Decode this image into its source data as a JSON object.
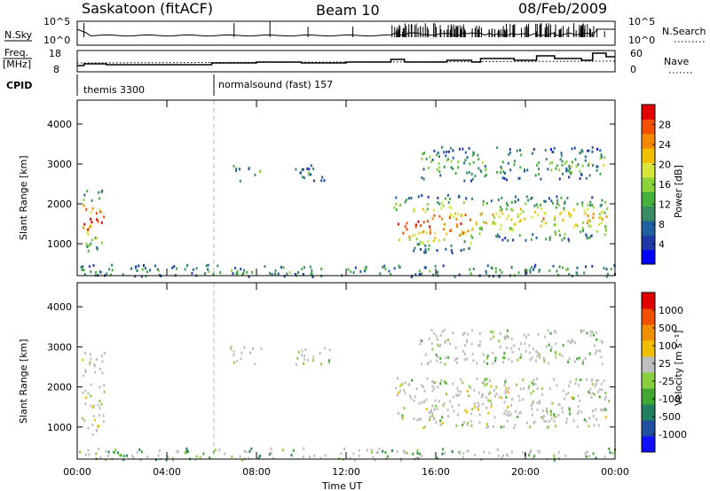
{
  "header": {
    "station": "Saskatoon (fitACF)",
    "beam": "Beam 10",
    "date": "08/Feb/2009"
  },
  "status_panel": {
    "nsky_label": "N.Sky",
    "nsearch_label": "N.Search",
    "freq_label_1": "Freq.",
    "freq_label_2": "[MHz]",
    "nave_label": "Nave",
    "cpid_label": "CPID",
    "noise_ticks": [
      "10^5",
      "10^0"
    ],
    "freq_ticks": [
      "18",
      "8"
    ],
    "nave_ticks": [
      "60",
      "0"
    ],
    "cpid_segments": [
      {
        "start_hour": 0.0,
        "name": "themis 3300"
      },
      {
        "start_hour": 6.0,
        "name": "normalsound (fast) 157"
      }
    ]
  },
  "chart_data": [
    {
      "type": "heatmap",
      "title": "",
      "parameter": "Power",
      "ylabel": "Slant Range [km]",
      "xlabel": "",
      "xlim_hours": [
        0,
        24
      ],
      "ylim_km": [
        200,
        4600
      ],
      "yticks": [
        "1000",
        "2000",
        "3000",
        "4000"
      ],
      "colorbar_label": "Power [dB]",
      "colorbar_ticks": [
        "28",
        "24",
        "20",
        "16",
        "12",
        "8",
        "4"
      ],
      "colorbar_colors": [
        "#0000ff",
        "#2038a8",
        "#2060a0",
        "#3a8a64",
        "#42b23c",
        "#8cd23a",
        "#d8e63c",
        "#f0c000",
        "#f48a00",
        "#f05000",
        "#e00000"
      ],
      "regions": [
        {
          "x": [
            0.2,
            1.2
          ],
          "y": [
            800,
            2400
          ],
          "level": 0.85
        },
        {
          "x": [
            6.7,
            8.2
          ],
          "y": [
            2600,
            3050
          ],
          "level": 0.2
        },
        {
          "x": [
            9.7,
            11.3
          ],
          "y": [
            2550,
            3000
          ],
          "level": 0.2
        },
        {
          "x": [
            14.1,
            17.6
          ],
          "y": [
            800,
            2250
          ],
          "level": 0.8
        },
        {
          "x": [
            17.5,
            23.7
          ],
          "y": [
            1100,
            2250
          ],
          "level": 0.55
        },
        {
          "x": [
            15.2,
            23.5
          ],
          "y": [
            2600,
            3450
          ],
          "level": 0.25
        },
        {
          "x": [
            0,
            24
          ],
          "y": [
            200,
            500
          ],
          "level": 0.2
        }
      ]
    },
    {
      "type": "heatmap",
      "title": "",
      "parameter": "Velocity",
      "ylabel": "Slant Range [km]",
      "xlabel": "Time UT",
      "xlim_hours": [
        0,
        24
      ],
      "ylim_km": [
        200,
        4600
      ],
      "yticks": [
        "1000",
        "2000",
        "3000",
        "4000"
      ],
      "xticks": [
        "00:00",
        "04:00",
        "08:00",
        "12:00",
        "16:00",
        "20:00",
        "00:00"
      ],
      "colorbar_label": "Velocity [m s⁻¹]",
      "colorbar_ticks": [
        "1000",
        "500",
        "100",
        "25",
        "-25",
        "-100",
        "-500",
        "-1000"
      ],
      "colorbar_colors": [
        "#1010ff",
        "#2050a0",
        "#208060",
        "#40a830",
        "#88d040",
        "#bebebe",
        "#f0c000",
        "#f09000",
        "#f05000",
        "#e00000"
      ],
      "regions": [
        {
          "x": [
            0.2,
            1.2
          ],
          "y": [
            800,
            2900
          ],
          "level": 0.55
        },
        {
          "x": [
            6.7,
            8.2
          ],
          "y": [
            2600,
            3050
          ],
          "level": 0.5
        },
        {
          "x": [
            9.7,
            11.3
          ],
          "y": [
            2550,
            3000
          ],
          "level": 0.5
        },
        {
          "x": [
            14.1,
            23.7
          ],
          "y": [
            1000,
            2250
          ],
          "level": 0.5
        },
        {
          "x": [
            15.2,
            23.5
          ],
          "y": [
            2600,
            3450
          ],
          "level": 0.45
        },
        {
          "x": [
            0,
            24
          ],
          "y": [
            200,
            500
          ],
          "level": 0.35
        }
      ]
    }
  ]
}
